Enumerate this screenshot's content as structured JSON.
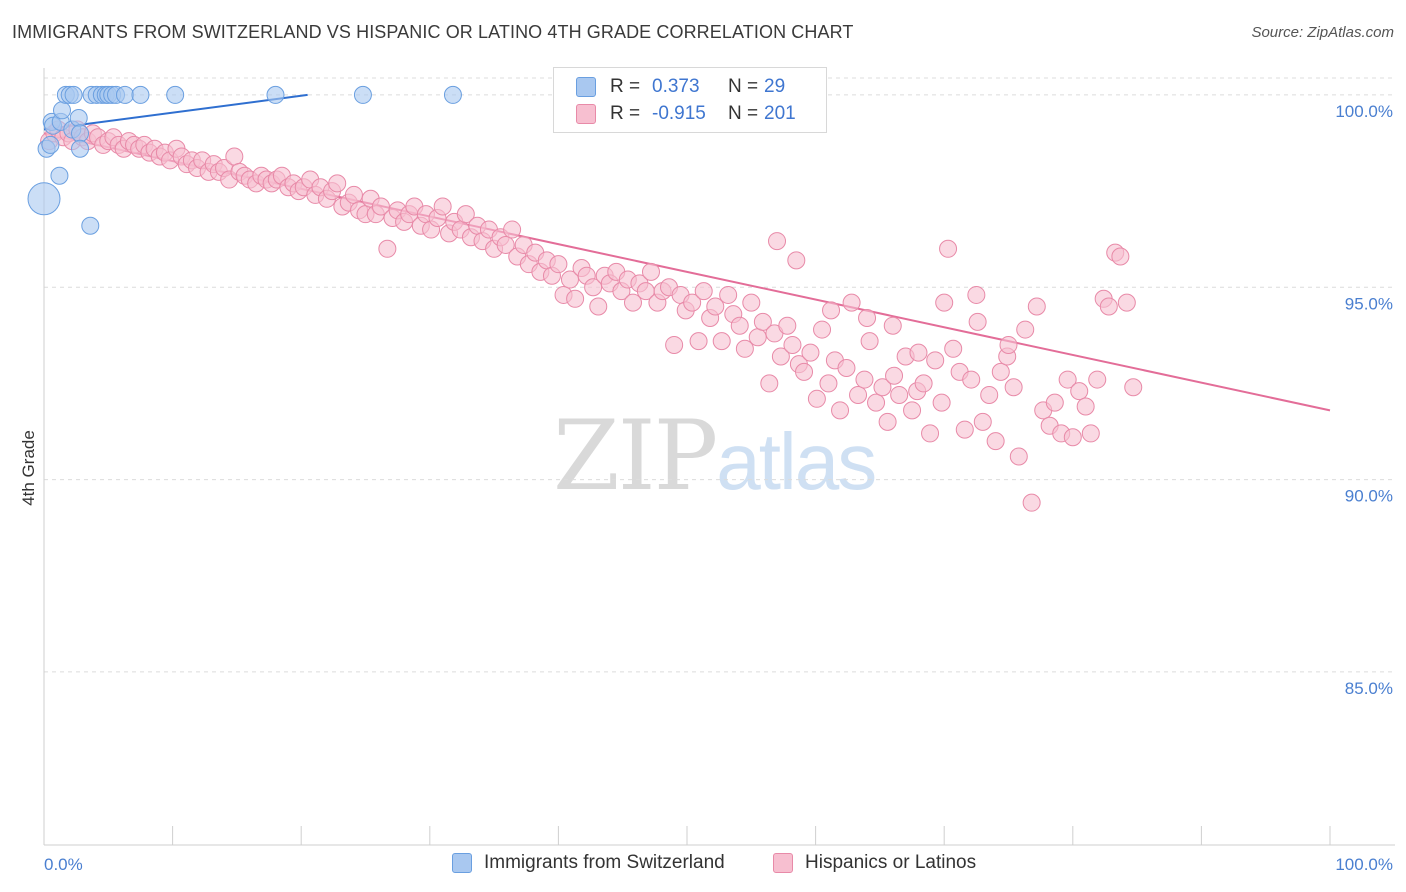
{
  "title": "IMMIGRANTS FROM SWITZERLAND VS HISPANIC OR LATINO 4TH GRADE CORRELATION CHART",
  "source": "Source: ZipAtlas.com",
  "watermark": {
    "zip": "ZIP",
    "atlas": "atlas"
  },
  "legend": {
    "rows": [
      {
        "r_label": "R =",
        "r_value": "0.373",
        "n_label": "N =",
        "n_value": "29",
        "color": "#a9c8f0",
        "border": "#6a9fe0"
      },
      {
        "r_label": "R =",
        "r_value": "-0.915",
        "n_label": "N =",
        "n_value": "201",
        "color": "#f7bfd0",
        "border": "#e88aa8"
      }
    ]
  },
  "bottom_legend": [
    {
      "label": "Immigrants from Switzerland",
      "color": "#a9c8f0",
      "border": "#6a9fe0"
    },
    {
      "label": "Hispanics or Latinos",
      "color": "#f7bfd0",
      "border": "#e88aa8"
    }
  ],
  "chart_data": {
    "type": "scatter",
    "title": "IMMIGRANTS FROM SWITZERLAND VS HISPANIC OR LATINO 4TH GRADE CORRELATION CHART",
    "xlabel": "",
    "ylabel": "4th Grade",
    "xlim": [
      0,
      100
    ],
    "ylim": [
      80.5,
      100.7
    ],
    "x_tick_labels": [
      "0.0%",
      "100.0%"
    ],
    "y_ticks": [
      85,
      90,
      95,
      100
    ],
    "y_tick_labels": [
      "85.0%",
      "90.0%",
      "95.0%",
      "100.0%"
    ],
    "grid": true,
    "series": [
      {
        "name": "Immigrants from Switzerland",
        "color": "#a9c8f0",
        "stroke": "#6a9fe0",
        "trend": {
          "x": [
            0,
            20.5
          ],
          "y": [
            99.1,
            100.0
          ],
          "color": "#2f6fd0"
        },
        "points": [
          [
            0,
            97.3
          ],
          [
            0.2,
            98.6
          ],
          [
            0.5,
            98.7
          ],
          [
            0.6,
            99.3
          ],
          [
            0.7,
            99.2
          ],
          [
            1.2,
            97.9
          ],
          [
            1.3,
            99.3
          ],
          [
            1.4,
            99.6
          ],
          [
            1.7,
            100.0
          ],
          [
            2.0,
            100.0
          ],
          [
            2.2,
            99.1
          ],
          [
            2.3,
            100.0
          ],
          [
            2.7,
            99.4
          ],
          [
            2.8,
            99.0
          ],
          [
            2.8,
            98.6
          ],
          [
            3.6,
            96.6
          ],
          [
            3.7,
            100.0
          ],
          [
            4.1,
            100.0
          ],
          [
            4.5,
            100.0
          ],
          [
            4.8,
            100.0
          ],
          [
            5.0,
            100.0
          ],
          [
            5.3,
            100.0
          ],
          [
            5.6,
            100.0
          ],
          [
            6.3,
            100.0
          ],
          [
            7.5,
            100.0
          ],
          [
            10.2,
            100.0
          ],
          [
            18.0,
            100.0
          ],
          [
            24.8,
            100.0
          ],
          [
            31.8,
            100.0
          ]
        ],
        "sizes": {
          "0": 30
        }
      },
      {
        "name": "Hispanics or Latinos",
        "color": "#f7bfd0",
        "stroke": "#e88aa8",
        "trend": {
          "x": [
            0,
            100
          ],
          "y": [
            99.0,
            91.8
          ],
          "color": "#e36d98"
        },
        "points": [
          [
            0.4,
            98.8
          ],
          [
            0.8,
            99.0
          ],
          [
            1.1,
            99.1
          ],
          [
            1.5,
            98.9
          ],
          [
            1.9,
            99.0
          ],
          [
            2.2,
            98.8
          ],
          [
            2.6,
            99.1
          ],
          [
            3.0,
            98.9
          ],
          [
            3.4,
            98.8
          ],
          [
            3.8,
            99.0
          ],
          [
            4.2,
            98.9
          ],
          [
            4.6,
            98.7
          ],
          [
            5.0,
            98.8
          ],
          [
            5.4,
            98.9
          ],
          [
            5.8,
            98.7
          ],
          [
            6.2,
            98.6
          ],
          [
            6.6,
            98.8
          ],
          [
            7.0,
            98.7
          ],
          [
            7.4,
            98.6
          ],
          [
            7.8,
            98.7
          ],
          [
            8.2,
            98.5
          ],
          [
            8.6,
            98.6
          ],
          [
            9.0,
            98.4
          ],
          [
            9.4,
            98.5
          ],
          [
            9.8,
            98.3
          ],
          [
            10.3,
            98.6
          ],
          [
            10.7,
            98.4
          ],
          [
            11.1,
            98.2
          ],
          [
            11.5,
            98.3
          ],
          [
            11.9,
            98.1
          ],
          [
            12.3,
            98.3
          ],
          [
            12.8,
            98.0
          ],
          [
            13.2,
            98.2
          ],
          [
            13.6,
            98.0
          ],
          [
            14.0,
            98.1
          ],
          [
            14.4,
            97.8
          ],
          [
            14.8,
            98.4
          ],
          [
            15.2,
            98.0
          ],
          [
            15.6,
            97.9
          ],
          [
            16.0,
            97.8
          ],
          [
            16.5,
            97.7
          ],
          [
            16.9,
            97.9
          ],
          [
            17.3,
            97.8
          ],
          [
            17.7,
            97.7
          ],
          [
            18.1,
            97.8
          ],
          [
            18.5,
            97.9
          ],
          [
            19.0,
            97.6
          ],
          [
            19.4,
            97.7
          ],
          [
            19.8,
            97.5
          ],
          [
            20.2,
            97.6
          ],
          [
            20.7,
            97.8
          ],
          [
            21.1,
            97.4
          ],
          [
            21.5,
            97.6
          ],
          [
            22.0,
            97.3
          ],
          [
            22.4,
            97.5
          ],
          [
            22.8,
            97.7
          ],
          [
            23.2,
            97.1
          ],
          [
            23.7,
            97.2
          ],
          [
            24.1,
            97.4
          ],
          [
            24.5,
            97.0
          ],
          [
            25.0,
            96.9
          ],
          [
            25.4,
            97.3
          ],
          [
            25.8,
            96.9
          ],
          [
            26.2,
            97.1
          ],
          [
            26.7,
            96.0
          ],
          [
            27.1,
            96.8
          ],
          [
            27.5,
            97.0
          ],
          [
            28.0,
            96.7
          ],
          [
            28.4,
            96.9
          ],
          [
            28.8,
            97.1
          ],
          [
            29.3,
            96.6
          ],
          [
            29.7,
            96.9
          ],
          [
            30.1,
            96.5
          ],
          [
            30.6,
            96.8
          ],
          [
            31.0,
            97.1
          ],
          [
            31.5,
            96.4
          ],
          [
            31.9,
            96.7
          ],
          [
            32.4,
            96.5
          ],
          [
            32.8,
            96.9
          ],
          [
            33.2,
            96.3
          ],
          [
            33.7,
            96.6
          ],
          [
            34.1,
            96.2
          ],
          [
            34.6,
            96.5
          ],
          [
            35.0,
            96.0
          ],
          [
            35.5,
            96.3
          ],
          [
            35.9,
            96.1
          ],
          [
            36.4,
            96.5
          ],
          [
            36.8,
            95.8
          ],
          [
            37.3,
            96.1
          ],
          [
            37.7,
            95.6
          ],
          [
            38.2,
            95.9
          ],
          [
            38.6,
            95.4
          ],
          [
            39.1,
            95.7
          ],
          [
            39.5,
            95.3
          ],
          [
            40.0,
            95.6
          ],
          [
            40.4,
            94.8
          ],
          [
            40.9,
            95.2
          ],
          [
            41.3,
            94.7
          ],
          [
            41.8,
            95.5
          ],
          [
            42.2,
            95.3
          ],
          [
            42.7,
            95.0
          ],
          [
            43.1,
            94.5
          ],
          [
            43.6,
            95.3
          ],
          [
            44.0,
            95.1
          ],
          [
            44.5,
            95.4
          ],
          [
            44.9,
            94.9
          ],
          [
            45.4,
            95.2
          ],
          [
            45.8,
            94.6
          ],
          [
            46.3,
            95.1
          ],
          [
            46.8,
            94.9
          ],
          [
            47.2,
            95.4
          ],
          [
            47.7,
            94.6
          ],
          [
            48.1,
            94.9
          ],
          [
            48.6,
            95.0
          ],
          [
            49.0,
            93.5
          ],
          [
            49.5,
            94.8
          ],
          [
            49.9,
            94.4
          ],
          [
            50.4,
            94.6
          ],
          [
            50.9,
            93.6
          ],
          [
            51.3,
            94.9
          ],
          [
            51.8,
            94.2
          ],
          [
            52.2,
            94.5
          ],
          [
            52.7,
            93.6
          ],
          [
            53.2,
            94.8
          ],
          [
            53.6,
            94.3
          ],
          [
            54.1,
            94.0
          ],
          [
            54.5,
            93.4
          ],
          [
            55.0,
            94.6
          ],
          [
            55.5,
            93.7
          ],
          [
            55.9,
            94.1
          ],
          [
            56.4,
            92.5
          ],
          [
            56.8,
            93.8
          ],
          [
            57.3,
            93.2
          ],
          [
            57.8,
            94.0
          ],
          [
            58.2,
            93.5
          ],
          [
            58.7,
            93.0
          ],
          [
            59.1,
            92.8
          ],
          [
            59.6,
            93.3
          ],
          [
            60.1,
            92.1
          ],
          [
            60.5,
            93.9
          ],
          [
            61.0,
            92.5
          ],
          [
            61.5,
            93.1
          ],
          [
            61.9,
            91.8
          ],
          [
            62.4,
            92.9
          ],
          [
            62.8,
            94.6
          ],
          [
            63.3,
            92.2
          ],
          [
            63.8,
            92.6
          ],
          [
            64.2,
            93.6
          ],
          [
            64.7,
            92.0
          ],
          [
            65.2,
            92.4
          ],
          [
            65.6,
            91.5
          ],
          [
            66.1,
            92.7
          ],
          [
            66.5,
            92.2
          ],
          [
            67.0,
            93.2
          ],
          [
            67.5,
            91.8
          ],
          [
            67.9,
            92.3
          ],
          [
            68.4,
            92.5
          ],
          [
            68.9,
            91.2
          ],
          [
            69.3,
            93.1
          ],
          [
            69.8,
            92.0
          ],
          [
            70.3,
            96.0
          ],
          [
            70.7,
            93.4
          ],
          [
            71.2,
            92.8
          ],
          [
            71.6,
            91.3
          ],
          [
            72.1,
            92.6
          ],
          [
            72.6,
            94.1
          ],
          [
            73.0,
            91.5
          ],
          [
            73.5,
            92.2
          ],
          [
            74.0,
            91.0
          ],
          [
            74.4,
            92.8
          ],
          [
            74.9,
            93.2
          ],
          [
            75.4,
            92.4
          ],
          [
            75.8,
            90.6
          ],
          [
            76.3,
            93.9
          ],
          [
            76.8,
            89.4
          ],
          [
            77.2,
            94.5
          ],
          [
            77.7,
            91.8
          ],
          [
            78.2,
            91.4
          ],
          [
            78.6,
            92.0
          ],
          [
            79.1,
            91.2
          ],
          [
            79.6,
            92.6
          ],
          [
            80.0,
            91.1
          ],
          [
            80.5,
            92.3
          ],
          [
            81.0,
            91.9
          ],
          [
            81.4,
            91.2
          ],
          [
            81.9,
            92.6
          ],
          [
            82.4,
            94.7
          ],
          [
            82.8,
            94.5
          ],
          [
            83.3,
            95.9
          ],
          [
            83.7,
            95.8
          ],
          [
            84.2,
            94.6
          ],
          [
            84.7,
            92.4
          ],
          [
            57.0,
            96.2
          ],
          [
            58.5,
            95.7
          ],
          [
            61.2,
            94.4
          ],
          [
            64.0,
            94.2
          ],
          [
            66.0,
            94.0
          ],
          [
            68.0,
            93.3
          ],
          [
            70.0,
            94.6
          ],
          [
            72.5,
            94.8
          ],
          [
            75.0,
            93.5
          ]
        ]
      }
    ]
  }
}
